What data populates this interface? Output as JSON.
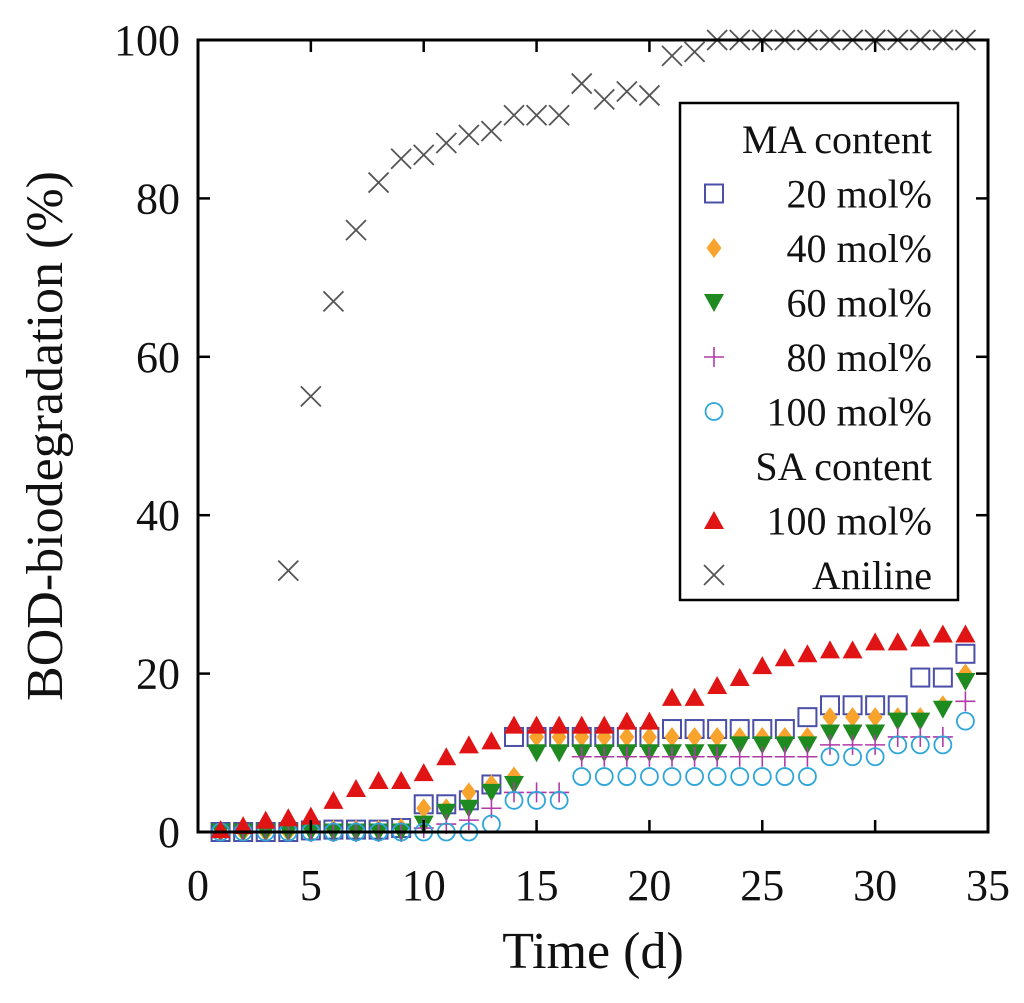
{
  "chart_data": {
    "type": "scatter",
    "title": "",
    "xlabel": "Time (d)",
    "ylabel": "BOD-biodegradation (%)",
    "xlim": [
      0,
      35
    ],
    "ylim": [
      0,
      100
    ],
    "xticks": [
      0,
      5,
      10,
      15,
      20,
      25,
      30,
      35
    ],
    "yticks": [
      0,
      20,
      40,
      60,
      80,
      100
    ],
    "xtick_labels": [
      "0",
      "5",
      "10",
      "15",
      "20",
      "25",
      "30",
      "35"
    ],
    "ytick_labels": [
      "0",
      "20",
      "40",
      "60",
      "80",
      "100"
    ],
    "grid": false,
    "legend": {
      "position": "top-right",
      "groups": [
        {
          "title": "MA content",
          "entries": [
            "20 mol%",
            "40 mol%",
            "60 mol%",
            "80 mol%",
            "100 mol%"
          ]
        },
        {
          "title": "SA content",
          "entries": [
            "100 mol%"
          ]
        },
        {
          "title": "",
          "entries": [
            "Aniline"
          ]
        }
      ]
    },
    "series": [
      {
        "name": "20 mol%",
        "group": "MA content",
        "marker": "square-open",
        "color": "#4b4fa8",
        "x": [
          1,
          2,
          3,
          4,
          5,
          6,
          7,
          8,
          9,
          10,
          11,
          12,
          13,
          14,
          15,
          16,
          17,
          18,
          19,
          20,
          21,
          22,
          23,
          24,
          25,
          26,
          27,
          28,
          29,
          30,
          31,
          32,
          33,
          34
        ],
        "y": [
          0,
          0,
          0,
          0,
          0.2,
          0.3,
          0.3,
          0.3,
          0.5,
          3.5,
          3.5,
          4,
          6,
          12,
          12,
          12,
          12,
          12,
          12,
          12,
          13,
          13,
          13,
          13,
          13,
          13,
          14.5,
          16,
          16,
          16,
          16,
          19.5,
          19.5,
          22.5
        ]
      },
      {
        "name": "40 mol%",
        "group": "MA content",
        "marker": "diamond",
        "color": "#f7a32c",
        "x": [
          1,
          2,
          3,
          4,
          5,
          6,
          7,
          8,
          9,
          10,
          11,
          12,
          13,
          14,
          15,
          16,
          17,
          18,
          19,
          20,
          21,
          22,
          23,
          24,
          25,
          26,
          27,
          28,
          29,
          30,
          31,
          32,
          33,
          34
        ],
        "y": [
          0,
          0,
          0,
          0,
          0.3,
          0.3,
          0.3,
          0.3,
          0.5,
          3,
          3,
          5,
          6,
          7,
          12,
          12,
          12,
          12,
          12,
          12,
          12,
          12,
          12,
          12,
          12,
          12,
          12,
          14.5,
          14.5,
          14.5,
          14.5,
          14.5,
          16,
          20
        ]
      },
      {
        "name": "60 mol%",
        "group": "MA content",
        "marker": "triangle-down",
        "color": "#1f8a1f",
        "x": [
          1,
          2,
          3,
          4,
          5,
          6,
          7,
          8,
          9,
          10,
          11,
          12,
          13,
          14,
          15,
          16,
          17,
          18,
          19,
          20,
          21,
          22,
          23,
          24,
          25,
          26,
          27,
          28,
          29,
          30,
          31,
          32,
          33,
          34
        ],
        "y": [
          0,
          0,
          0,
          0,
          0,
          0,
          0,
          0,
          0,
          1,
          2.5,
          3,
          5,
          6,
          10,
          10,
          10,
          10,
          10,
          10,
          10,
          10,
          10,
          11,
          11,
          11,
          11,
          12.5,
          12.5,
          12.5,
          14,
          14,
          15.5,
          19
        ]
      },
      {
        "name": "80 mol%",
        "group": "MA content",
        "marker": "plus",
        "color": "#b23aa8",
        "x": [
          1,
          2,
          3,
          4,
          5,
          6,
          7,
          8,
          9,
          10,
          11,
          12,
          13,
          14,
          15,
          16,
          17,
          18,
          19,
          20,
          21,
          22,
          23,
          24,
          25,
          26,
          27,
          28,
          29,
          30,
          31,
          32,
          33,
          34
        ],
        "y": [
          0,
          0,
          0,
          0,
          0,
          0,
          0,
          0,
          0,
          0.5,
          1,
          1.5,
          3,
          5,
          5,
          5,
          9.5,
          9.5,
          9.5,
          9.5,
          9.5,
          9.5,
          9.5,
          9.5,
          9.5,
          9.5,
          9.5,
          11,
          11,
          11,
          12,
          12,
          12,
          16.5
        ]
      },
      {
        "name": "100 mol%",
        "group": "MA content",
        "marker": "circle-open",
        "color": "#2ea6d8",
        "x": [
          1,
          2,
          3,
          4,
          5,
          6,
          7,
          8,
          9,
          10,
          11,
          12,
          13,
          14,
          15,
          16,
          17,
          18,
          19,
          20,
          21,
          22,
          23,
          24,
          25,
          26,
          27,
          28,
          29,
          30,
          31,
          32,
          33,
          34
        ],
        "y": [
          0,
          0,
          0,
          0,
          0,
          0,
          0,
          0,
          0,
          0,
          0,
          0,
          1,
          4,
          4,
          4,
          7,
          7,
          7,
          7,
          7,
          7,
          7,
          7,
          7,
          7,
          7,
          9.5,
          9.5,
          9.5,
          11,
          11,
          11,
          14
        ]
      },
      {
        "name": "100 mol%",
        "group": "SA content",
        "marker": "triangle-up",
        "color": "#e01414",
        "x": [
          1,
          2,
          3,
          4,
          5,
          6,
          7,
          8,
          9,
          10,
          11,
          12,
          13,
          14,
          15,
          16,
          17,
          18,
          19,
          20,
          21,
          22,
          23,
          24,
          25,
          26,
          27,
          28,
          29,
          30,
          31,
          32,
          33,
          34
        ],
        "y": [
          0.3,
          0.8,
          1.5,
          1.8,
          2,
          4,
          5.5,
          6.5,
          6.5,
          7.5,
          9.5,
          11,
          11.5,
          13.5,
          13.5,
          13.5,
          13.5,
          13.5,
          14,
          14,
          17,
          17,
          18.5,
          19.5,
          21,
          22,
          22.5,
          23,
          23,
          24,
          24,
          24.5,
          25,
          25
        ]
      },
      {
        "name": "Aniline",
        "group": "",
        "marker": "x",
        "color": "#555555",
        "x": [
          4,
          5,
          6,
          7,
          8,
          9,
          10,
          11,
          12,
          13,
          14,
          15,
          16,
          17,
          18,
          19,
          20,
          21,
          22,
          23,
          24,
          25,
          26,
          27,
          28,
          29,
          30,
          31,
          32,
          33,
          34
        ],
        "y": [
          33,
          55,
          67,
          76,
          82,
          85,
          85.5,
          87,
          88,
          88.5,
          90.5,
          90.5,
          90.5,
          94.5,
          92.5,
          93.5,
          93,
          98,
          98.5,
          100,
          100,
          100,
          100,
          100,
          100,
          100,
          100,
          100,
          100,
          100,
          100
        ]
      }
    ]
  }
}
